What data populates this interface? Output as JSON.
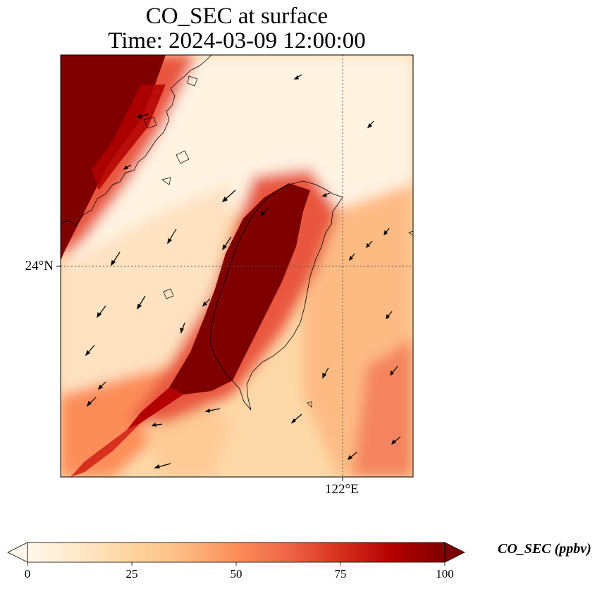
{
  "title_line1": "CO_SEC at surface",
  "title_line2": "Time: 2024-03-09 12:00:00",
  "axes": {
    "lat_tick": "24°N",
    "lon_tick": "122°E"
  },
  "colorbar": {
    "label": "CO_SEC (ppbv)",
    "ticks": [
      "0",
      "25",
      "50",
      "75",
      "100"
    ],
    "min": 0,
    "max": 100,
    "extend": "both",
    "colormap": [
      "#fff7ec",
      "#fee8c8",
      "#fdd49e",
      "#fdbb84",
      "#fc8d59",
      "#ef6548",
      "#d7301f",
      "#b30000",
      "#7f0000"
    ]
  },
  "colors": {
    "low": "#fff7ec",
    "high": "#7f0000",
    "coastline": "#000000",
    "gridline": "#555555"
  }
}
